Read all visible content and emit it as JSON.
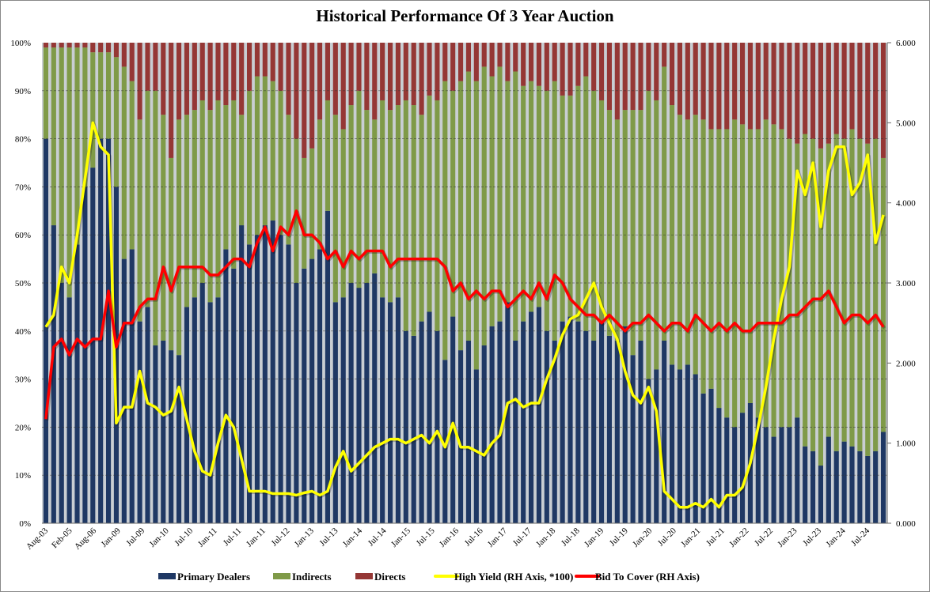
{
  "chart_data": {
    "type": "bar",
    "title": "Historical Performance Of 3 Year Auction",
    "stacked": true,
    "left_axis": {
      "ticks": [
        "0%",
        "10%",
        "20%",
        "30%",
        "40%",
        "50%",
        "60%",
        "70%",
        "80%",
        "90%",
        "100%"
      ],
      "range": [
        0,
        100
      ]
    },
    "right_axis": {
      "ticks": [
        "0.000",
        "1.000",
        "2.000",
        "3.000",
        "4.000",
        "5.000",
        "6.000"
      ],
      "range": [
        0,
        6
      ]
    },
    "x_tick_labels": [
      "Aug-03",
      "Feb-05",
      "Aug-06",
      "Jan-09",
      "Jul-09",
      "Jan-10",
      "Jul-10",
      "Jan-11",
      "Jul-11",
      "Jan-11",
      "Jul-12",
      "Jan-13",
      "Jul-13",
      "Jan-14",
      "Jul-14",
      "Jan-15",
      "Jul-15",
      "Jan-16",
      "Jul-16",
      "Jan-17",
      "Jul-17",
      "Jan-18",
      "Jul-18",
      "Jan-19",
      "Jul-19",
      "Jan-20",
      "Jul-20",
      "Jan-21",
      "Jul-21",
      "Jan-22",
      "Jul-22",
      "Jan-23",
      "Jul-23",
      "Jan-24",
      "Jul-24"
    ],
    "grid": true,
    "legend_position": "bottom",
    "colors": {
      "primary_dealers": "#1f3864",
      "indirects": "#7f9a48",
      "directs": "#953735",
      "high_yield": "#ffff00",
      "bid_to_cover": "#ff0000",
      "bar_gap": "#c9ced3"
    },
    "series": [
      {
        "name": "Primary Dealers",
        "axis": "left",
        "kind": "bar",
        "values": [
          80,
          62,
          50,
          47,
          58,
          70,
          74,
          80,
          80,
          70,
          55,
          57,
          42,
          45,
          37,
          38,
          36,
          35,
          45,
          47,
          50,
          46,
          47,
          57,
          53,
          62,
          58,
          60,
          62,
          63,
          60,
          58,
          50,
          53,
          55,
          57,
          65,
          46,
          47,
          50,
          49,
          50,
          52,
          47,
          46,
          47,
          40,
          39,
          42,
          44,
          40,
          34,
          43,
          36,
          38,
          32,
          37,
          41,
          42,
          46,
          38,
          42,
          44,
          45,
          40,
          38,
          42,
          43,
          42,
          40,
          38,
          42,
          39,
          38,
          41,
          35,
          38,
          30,
          32,
          38,
          33,
          32,
          33,
          31,
          27,
          28,
          24,
          22,
          20,
          23,
          25,
          22,
          20,
          18,
          20,
          20,
          22,
          16,
          15,
          12,
          18,
          15,
          17,
          16,
          15,
          14,
          15,
          19
        ]
      },
      {
        "name": "Indirects",
        "axis": "left",
        "kind": "bar",
        "values": [
          19,
          37,
          49,
          52,
          41,
          29,
          24,
          18,
          18,
          27,
          40,
          35,
          42,
          45,
          53,
          47,
          40,
          49,
          40,
          39,
          38,
          40,
          41,
          30,
          35,
          23,
          32,
          33,
          31,
          29,
          30,
          27,
          30,
          23,
          23,
          27,
          23,
          39,
          35,
          37,
          41,
          36,
          32,
          41,
          40,
          40,
          48,
          48,
          43,
          45,
          48,
          58,
          47,
          56,
          56,
          60,
          58,
          52,
          53,
          46,
          56,
          49,
          48,
          46,
          50,
          54,
          47,
          46,
          49,
          53,
          52,
          46,
          47,
          46,
          45,
          51,
          48,
          60,
          56,
          57,
          54,
          53,
          51,
          54,
          57,
          54,
          58,
          60,
          64,
          60,
          57,
          60,
          64,
          65,
          62,
          60,
          57,
          65,
          65,
          66,
          61,
          66,
          63,
          66,
          65,
          65,
          65,
          57
        ]
      },
      {
        "name": "Directs",
        "axis": "left",
        "kind": "bar",
        "values": [
          1,
          1,
          1,
          1,
          1,
          1,
          2,
          2,
          2,
          3,
          5,
          8,
          16,
          10,
          10,
          15,
          24,
          16,
          15,
          14,
          12,
          14,
          12,
          13,
          12,
          15,
          10,
          7,
          7,
          8,
          10,
          15,
          20,
          24,
          22,
          16,
          12,
          15,
          18,
          13,
          10,
          14,
          16,
          12,
          14,
          13,
          12,
          13,
          15,
          11,
          12,
          8,
          10,
          8,
          6,
          8,
          5,
          7,
          5,
          8,
          6,
          9,
          8,
          9,
          10,
          8,
          11,
          11,
          9,
          7,
          10,
          12,
          14,
          16,
          14,
          14,
          14,
          10,
          12,
          5,
          13,
          15,
          16,
          15,
          16,
          18,
          18,
          18,
          16,
          17,
          18,
          18,
          16,
          17,
          18,
          20,
          21,
          19,
          20,
          22,
          21,
          19,
          20,
          18,
          20,
          21,
          20,
          24
        ]
      },
      {
        "name": "High Yield (RH Axis, *100)",
        "axis": "right",
        "kind": "line",
        "values": [
          2.45,
          2.6,
          3.2,
          3.0,
          3.6,
          4.3,
          5.0,
          4.7,
          4.6,
          1.25,
          1.45,
          1.45,
          1.9,
          1.5,
          1.45,
          1.35,
          1.4,
          1.7,
          1.3,
          0.9,
          0.65,
          0.6,
          1.0,
          1.35,
          1.2,
          0.8,
          0.4,
          0.4,
          0.4,
          0.37,
          0.37,
          0.37,
          0.35,
          0.38,
          0.4,
          0.35,
          0.4,
          0.7,
          0.9,
          0.65,
          0.75,
          0.85,
          0.95,
          1.0,
          1.05,
          1.05,
          1.0,
          1.05,
          1.1,
          1.0,
          1.15,
          0.95,
          1.25,
          0.95,
          0.95,
          0.9,
          0.85,
          1.0,
          1.1,
          1.5,
          1.55,
          1.45,
          1.5,
          1.5,
          1.8,
          2.05,
          2.35,
          2.55,
          2.6,
          2.8,
          3.0,
          2.7,
          2.5,
          2.3,
          1.9,
          1.6,
          1.5,
          1.7,
          1.4,
          0.4,
          0.3,
          0.2,
          0.2,
          0.25,
          0.2,
          0.3,
          0.2,
          0.35,
          0.35,
          0.45,
          0.75,
          1.2,
          1.7,
          2.3,
          2.8,
          3.2,
          4.4,
          4.1,
          4.5,
          3.7,
          4.4,
          4.7,
          4.7,
          4.1,
          4.25,
          4.6,
          3.5,
          3.85
        ]
      },
      {
        "name": "Bid To Cover (RH Axis)",
        "axis": "right",
        "kind": "line",
        "values": [
          1.3,
          2.2,
          2.3,
          2.1,
          2.3,
          2.2,
          2.3,
          2.3,
          2.9,
          2.2,
          2.5,
          2.5,
          2.7,
          2.8,
          2.8,
          3.2,
          2.9,
          3.2,
          3.2,
          3.2,
          3.2,
          3.1,
          3.1,
          3.2,
          3.3,
          3.3,
          3.2,
          3.5,
          3.7,
          3.4,
          3.7,
          3.6,
          3.9,
          3.6,
          3.6,
          3.5,
          3.3,
          3.4,
          3.2,
          3.4,
          3.3,
          3.4,
          3.4,
          3.4,
          3.2,
          3.3,
          3.3,
          3.3,
          3.3,
          3.3,
          3.3,
          3.2,
          2.9,
          3.0,
          2.8,
          2.9,
          2.8,
          2.9,
          2.9,
          2.7,
          2.8,
          2.9,
          2.8,
          3.0,
          2.8,
          3.1,
          3.0,
          2.8,
          2.7,
          2.6,
          2.6,
          2.5,
          2.6,
          2.5,
          2.4,
          2.5,
          2.5,
          2.6,
          2.5,
          2.4,
          2.5,
          2.5,
          2.4,
          2.6,
          2.5,
          2.4,
          2.5,
          2.4,
          2.5,
          2.4,
          2.4,
          2.5,
          2.5,
          2.5,
          2.5,
          2.6,
          2.6,
          2.7,
          2.8,
          2.8,
          2.9,
          2.7,
          2.5,
          2.6,
          2.6,
          2.5,
          2.6,
          2.45
        ]
      }
    ]
  }
}
